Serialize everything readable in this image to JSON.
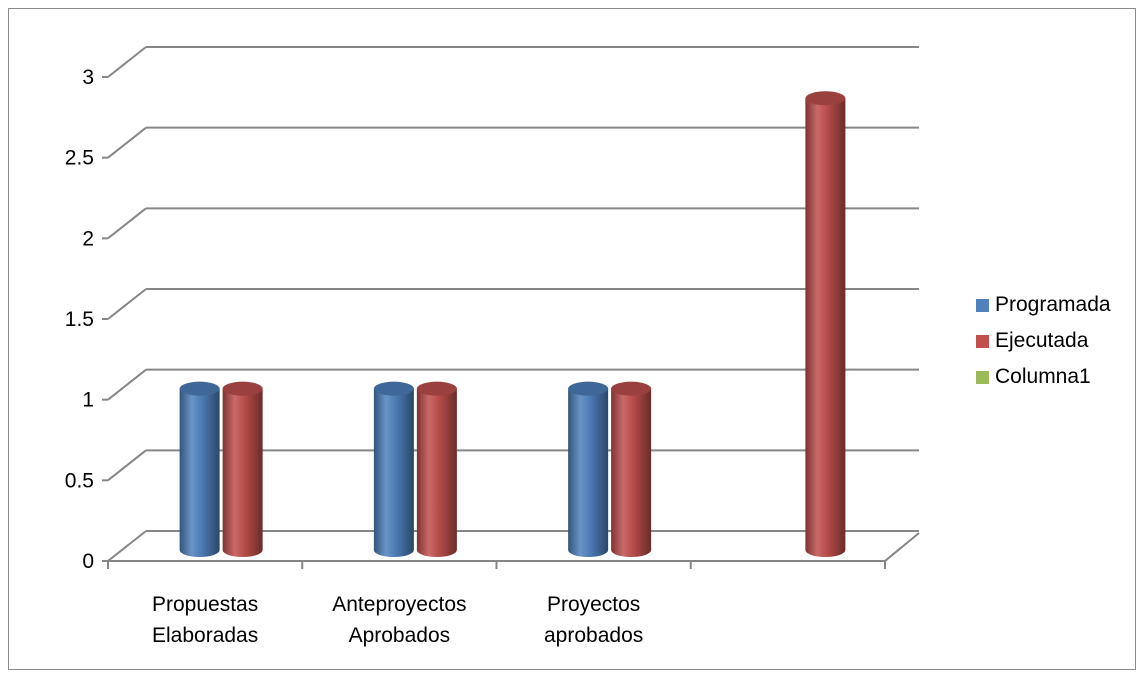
{
  "chart_data": {
    "type": "bar",
    "categories": [
      "Propuestas\nElaboradas",
      "Anteproyectos\nAprobados",
      "Proyectos\naprobados",
      ""
    ],
    "series": [
      {
        "name": "Programada",
        "values": [
          1,
          1,
          1,
          null
        ],
        "color": "#4F81BD"
      },
      {
        "name": "Ejecutada",
        "values": [
          1,
          1,
          1,
          2.8
        ],
        "color": "#C0504D"
      },
      {
        "name": "Columna1",
        "values": [
          null,
          null,
          null,
          null
        ],
        "color": "#9BBB59"
      }
    ],
    "y_ticks": [
      "0",
      "0.5",
      "1",
      "1.5",
      "2",
      "2.5",
      "3"
    ],
    "ylim": [
      0,
      3
    ],
    "grid": true,
    "legend_position": "right",
    "style": "3d-cylinder"
  }
}
